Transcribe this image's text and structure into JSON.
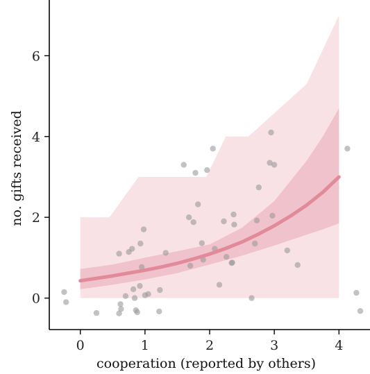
{
  "chart_data": {
    "type": "scatter",
    "xlabel": "cooperation (reported by others)",
    "ylabel": "no. gifts received",
    "xlim": [
      -0.48,
      4.48
    ],
    "ylim": [
      -0.78,
      7.38
    ],
    "xticks": [
      0,
      1,
      2,
      3,
      4
    ],
    "yticks": [
      0,
      2,
      4,
      6
    ],
    "grid": false,
    "legend": "none",
    "colors": {
      "points": "#9a9a9a",
      "fit_line": "#e08a9a",
      "inner_band": "#f0c2cb",
      "outer_band": "#f8e2e5",
      "axis": "#000000"
    },
    "fit_line": {
      "x": [
        0,
        0.25,
        0.5,
        0.75,
        1,
        1.25,
        1.5,
        1.75,
        2,
        2.25,
        2.5,
        2.75,
        3,
        3.25,
        3.5,
        3.75,
        4
      ],
      "y": [
        0.43,
        0.49,
        0.55,
        0.62,
        0.69,
        0.77,
        0.86,
        0.97,
        1.09,
        1.23,
        1.39,
        1.58,
        1.79,
        2.03,
        2.3,
        2.62,
        3.0
      ]
    },
    "inner_band": {
      "x": [
        0,
        0.5,
        1,
        1.5,
        2,
        2.5,
        3,
        3.5,
        3.75,
        4
      ],
      "lower": [
        0.22,
        0.33,
        0.46,
        0.62,
        0.83,
        1.05,
        1.3,
        1.57,
        1.7,
        1.85
      ],
      "upper": [
        0.72,
        0.83,
        1.0,
        1.16,
        1.33,
        1.74,
        2.4,
        3.4,
        4.0,
        4.7
      ]
    },
    "outer_band": {
      "x": [
        0,
        0.45,
        0.45,
        0.9,
        0.9,
        1.95,
        1.95,
        2.25,
        2.25,
        2.6,
        2.6,
        3.5,
        4
      ],
      "lower": [
        0,
        0,
        0,
        0,
        0,
        0,
        0,
        0,
        0,
        0,
        0,
        0,
        0
      ],
      "upper": [
        2,
        2,
        2,
        3,
        3,
        3,
        3,
        4,
        4,
        4,
        4,
        5.3,
        7
      ]
    },
    "points": [
      {
        "x": -0.25,
        "y": 0.15
      },
      {
        "x": -0.22,
        "y": -0.1
      },
      {
        "x": 0.25,
        "y": -0.37
      },
      {
        "x": 0.6,
        "y": -0.38
      },
      {
        "x": 0.62,
        "y": -0.15
      },
      {
        "x": 0.63,
        "y": -0.27
      },
      {
        "x": 0.6,
        "y": 1.1
      },
      {
        "x": 0.7,
        "y": 0.05
      },
      {
        "x": 0.75,
        "y": 1.14
      },
      {
        "x": 0.8,
        "y": 1.22
      },
      {
        "x": 0.82,
        "y": 0.22
      },
      {
        "x": 0.84,
        "y": 0.0
      },
      {
        "x": 0.86,
        "y": -0.3
      },
      {
        "x": 0.88,
        "y": -0.35
      },
      {
        "x": 0.92,
        "y": 0.3
      },
      {
        "x": 0.93,
        "y": 1.35
      },
      {
        "x": 0.95,
        "y": 0.77
      },
      {
        "x": 0.98,
        "y": 1.7
      },
      {
        "x": 1.0,
        "y": 0.07
      },
      {
        "x": 1.05,
        "y": 0.1
      },
      {
        "x": 1.22,
        "y": -0.33
      },
      {
        "x": 1.23,
        "y": 0.2
      },
      {
        "x": 1.32,
        "y": 1.12
      },
      {
        "x": 1.6,
        "y": 3.3
      },
      {
        "x": 1.68,
        "y": 2.0
      },
      {
        "x": 1.7,
        "y": 0.8
      },
      {
        "x": 1.75,
        "y": 1.88
      },
      {
        "x": 1.78,
        "y": 3.1
      },
      {
        "x": 1.82,
        "y": 2.32
      },
      {
        "x": 1.88,
        "y": 1.36
      },
      {
        "x": 1.9,
        "y": 0.95
      },
      {
        "x": 1.96,
        "y": 3.17
      },
      {
        "x": 2.05,
        "y": 3.7
      },
      {
        "x": 2.08,
        "y": 1.22
      },
      {
        "x": 2.15,
        "y": 0.33
      },
      {
        "x": 2.22,
        "y": 1.9
      },
      {
        "x": 2.26,
        "y": 1.02
      },
      {
        "x": 2.34,
        "y": 0.87
      },
      {
        "x": 2.35,
        "y": 0.88
      },
      {
        "x": 2.37,
        "y": 2.07
      },
      {
        "x": 2.38,
        "y": 1.82
      },
      {
        "x": 2.65,
        "y": 0.0
      },
      {
        "x": 2.7,
        "y": 1.35
      },
      {
        "x": 2.73,
        "y": 1.92
      },
      {
        "x": 2.76,
        "y": 2.74
      },
      {
        "x": 2.93,
        "y": 3.35
      },
      {
        "x": 2.95,
        "y": 4.1
      },
      {
        "x": 2.97,
        "y": 2.04
      },
      {
        "x": 3.0,
        "y": 3.3
      },
      {
        "x": 3.2,
        "y": 1.18
      },
      {
        "x": 3.36,
        "y": 0.82
      },
      {
        "x": 4.13,
        "y": 3.7
      },
      {
        "x": 4.27,
        "y": 0.13
      },
      {
        "x": 4.33,
        "y": -0.32
      }
    ]
  }
}
